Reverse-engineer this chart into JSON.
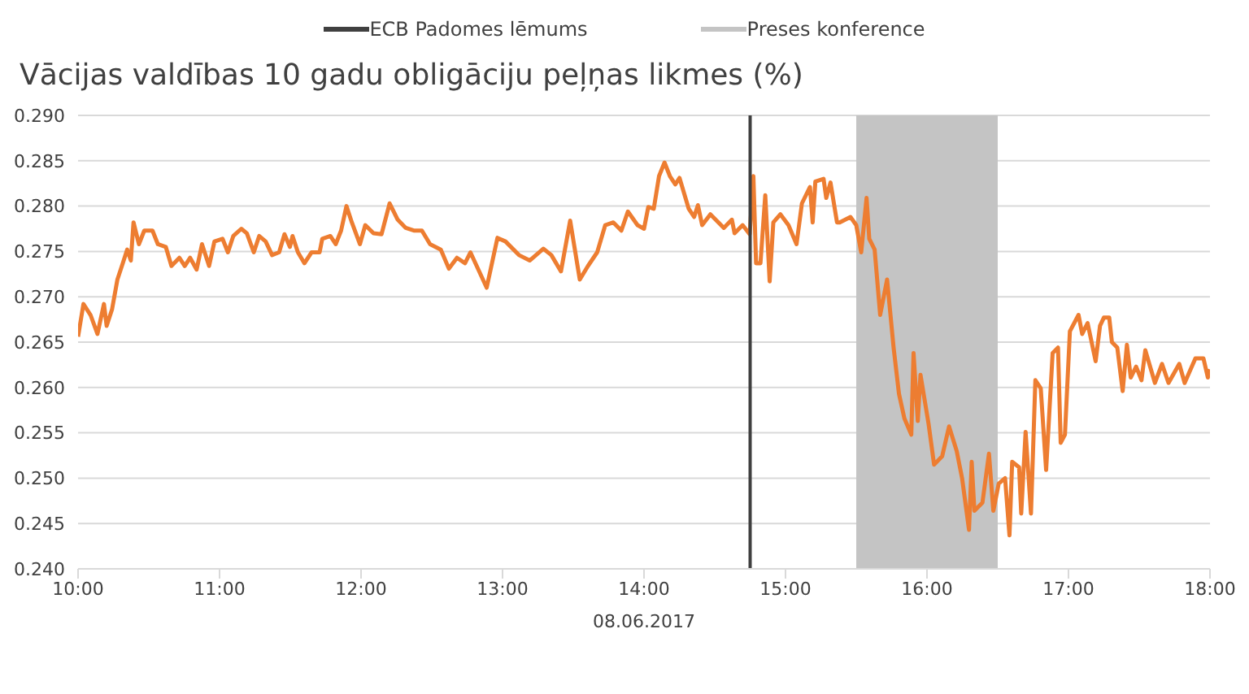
{
  "chart_data": {
    "type": "line",
    "title": "Vācijas valdības 10 gadu obligāciju peļņas likmes (%)",
    "xlabel": "08.06.2017",
    "x": [
      10.0,
      10.038,
      10.088,
      10.137,
      10.183,
      10.202,
      10.24,
      10.278,
      10.316,
      10.347,
      10.373,
      10.392,
      10.43,
      10.468,
      10.526,
      10.564,
      10.62,
      10.66,
      10.716,
      10.754,
      10.792,
      10.838,
      10.876,
      10.926,
      10.964,
      11.021,
      11.059,
      11.097,
      11.154,
      11.193,
      11.242,
      11.28,
      11.326,
      11.371,
      11.421,
      11.459,
      11.497,
      11.516,
      11.554,
      11.6,
      11.65,
      11.707,
      11.726,
      11.783,
      11.821,
      11.859,
      11.897,
      11.935,
      11.992,
      12.03,
      12.088,
      12.145,
      12.202,
      12.259,
      12.316,
      12.373,
      12.43,
      12.488,
      12.564,
      12.621,
      12.678,
      12.735,
      12.773,
      12.888,
      12.964,
      13.021,
      13.116,
      13.192,
      13.288,
      13.345,
      13.413,
      13.478,
      13.505,
      13.546,
      13.604,
      13.669,
      13.726,
      13.783,
      13.84,
      13.886,
      13.954,
      14.0,
      14.03,
      14.069,
      14.106,
      14.145,
      14.183,
      14.221,
      14.251,
      14.316,
      14.354,
      14.381,
      14.411,
      14.469,
      14.526,
      14.564,
      14.621,
      14.64,
      14.697,
      14.747,
      14.773,
      14.792,
      14.823,
      14.857,
      14.888,
      14.914,
      14.964,
      15.021,
      15.078,
      15.116,
      15.173,
      15.192,
      15.211,
      15.269,
      15.288,
      15.318,
      15.364,
      15.383,
      15.459,
      15.5,
      15.535,
      15.573,
      15.592,
      15.63,
      15.669,
      15.718,
      15.764,
      15.802,
      15.84,
      15.889,
      15.905,
      15.935,
      15.954,
      16.011,
      16.05,
      16.107,
      16.156,
      16.21,
      16.248,
      16.297,
      16.316,
      16.335,
      16.392,
      16.438,
      16.469,
      16.507,
      16.552,
      16.583,
      16.602,
      16.651,
      16.666,
      16.697,
      16.735,
      16.766,
      16.804,
      16.842,
      16.888,
      16.926,
      16.945,
      16.975,
      17.01,
      17.071,
      17.097,
      17.135,
      17.192,
      17.223,
      17.25,
      17.288,
      17.307,
      17.345,
      17.383,
      17.413,
      17.44,
      17.478,
      17.516,
      17.543,
      17.611,
      17.661,
      17.707,
      17.783,
      17.821,
      17.897,
      17.954,
      17.985,
      18.0
    ],
    "series": [
      {
        "color": "#ed7d31",
        "values": [
          0.2656,
          0.2692,
          0.268,
          0.2659,
          0.2692,
          0.2668,
          0.2686,
          0.2719,
          0.2737,
          0.2752,
          0.274,
          0.2782,
          0.2758,
          0.2773,
          0.2773,
          0.2758,
          0.2755,
          0.2734,
          0.2743,
          0.2734,
          0.2743,
          0.273,
          0.2758,
          0.2734,
          0.2761,
          0.2764,
          0.2749,
          0.2767,
          0.2775,
          0.277,
          0.2749,
          0.2767,
          0.2761,
          0.2746,
          0.2749,
          0.2769,
          0.2755,
          0.2767,
          0.2749,
          0.2737,
          0.2749,
          0.2749,
          0.2764,
          0.2767,
          0.2758,
          0.2773,
          0.28,
          0.2782,
          0.2758,
          0.2779,
          0.277,
          0.2769,
          0.2803,
          0.2785,
          0.2776,
          0.2773,
          0.2773,
          0.2758,
          0.2752,
          0.2731,
          0.2743,
          0.2737,
          0.2749,
          0.271,
          0.2765,
          0.2761,
          0.2746,
          0.274,
          0.2753,
          0.2746,
          0.2728,
          0.2784,
          0.2758,
          0.2719,
          0.2734,
          0.2749,
          0.2779,
          0.2782,
          0.2773,
          0.2794,
          0.2779,
          0.2775,
          0.2799,
          0.2797,
          0.2833,
          0.2848,
          0.2833,
          0.2824,
          0.2831,
          0.2797,
          0.2788,
          0.2801,
          0.2779,
          0.2791,
          0.2782,
          0.2776,
          0.2785,
          0.277,
          0.2779,
          0.2769,
          0.2833,
          0.2737,
          0.2737,
          0.2812,
          0.2717,
          0.2782,
          0.2791,
          0.2779,
          0.2758,
          0.2803,
          0.2821,
          0.2782,
          0.2827,
          0.283,
          0.2809,
          0.2826,
          0.2782,
          0.2782,
          0.2788,
          0.2779,
          0.2749,
          0.2809,
          0.2764,
          0.2752,
          0.268,
          0.2719,
          0.2644,
          0.2593,
          0.2566,
          0.2548,
          0.2638,
          0.2563,
          0.2614,
          0.256,
          0.2515,
          0.2524,
          0.2557,
          0.253,
          0.25,
          0.2443,
          0.2518,
          0.2464,
          0.2473,
          0.2527,
          0.2464,
          0.2494,
          0.25,
          0.2437,
          0.2518,
          0.2512,
          0.2461,
          0.2551,
          0.2461,
          0.2608,
          0.2599,
          0.2509,
          0.2638,
          0.2644,
          0.2539,
          0.2548,
          0.2662,
          0.268,
          0.2659,
          0.2671,
          0.2629,
          0.2668,
          0.2677,
          0.2677,
          0.265,
          0.2644,
          0.2596,
          0.2647,
          0.2611,
          0.2623,
          0.2608,
          0.2641,
          0.2605,
          0.2626,
          0.2605,
          0.2626,
          0.2605,
          0.2632,
          0.2632,
          0.2611,
          0.262
        ]
      }
    ],
    "xlim": [
      10,
      18
    ],
    "xticks": [
      {
        "value": 10,
        "label": "10:00"
      },
      {
        "value": 11,
        "label": "11:00"
      },
      {
        "value": 12,
        "label": "12:00"
      },
      {
        "value": 13,
        "label": "13:00"
      },
      {
        "value": 14,
        "label": "14:00"
      },
      {
        "value": 15,
        "label": "15:00"
      },
      {
        "value": 16,
        "label": "16:00"
      },
      {
        "value": 17,
        "label": "17:00"
      },
      {
        "value": 18,
        "label": "18:00"
      }
    ],
    "ylim": [
      0.24,
      0.29
    ],
    "yticks": [
      {
        "value": 0.24,
        "label": "0.240"
      },
      {
        "value": 0.245,
        "label": "0.245"
      },
      {
        "value": 0.25,
        "label": "0.250"
      },
      {
        "value": 0.255,
        "label": "0.255"
      },
      {
        "value": 0.26,
        "label": "0.260"
      },
      {
        "value": 0.265,
        "label": "0.265"
      },
      {
        "value": 0.27,
        "label": "0.270"
      },
      {
        "value": 0.275,
        "label": "0.275"
      },
      {
        "value": 0.28,
        "label": "0.280"
      },
      {
        "value": 0.285,
        "label": "0.285"
      },
      {
        "value": 0.29,
        "label": "0.290"
      }
    ],
    "ref_lines": [
      {
        "axis": "x",
        "value": 14.75,
        "label": "ECB Padomes lēmums",
        "color": "#404040"
      }
    ],
    "bands": [
      {
        "axis": "x",
        "from": 15.5,
        "to": 16.5,
        "label": "Preses konference",
        "color": "#c4c4c4"
      }
    ],
    "grid": "y",
    "legend": "top",
    "marker": "none",
    "line_style": "solid"
  }
}
